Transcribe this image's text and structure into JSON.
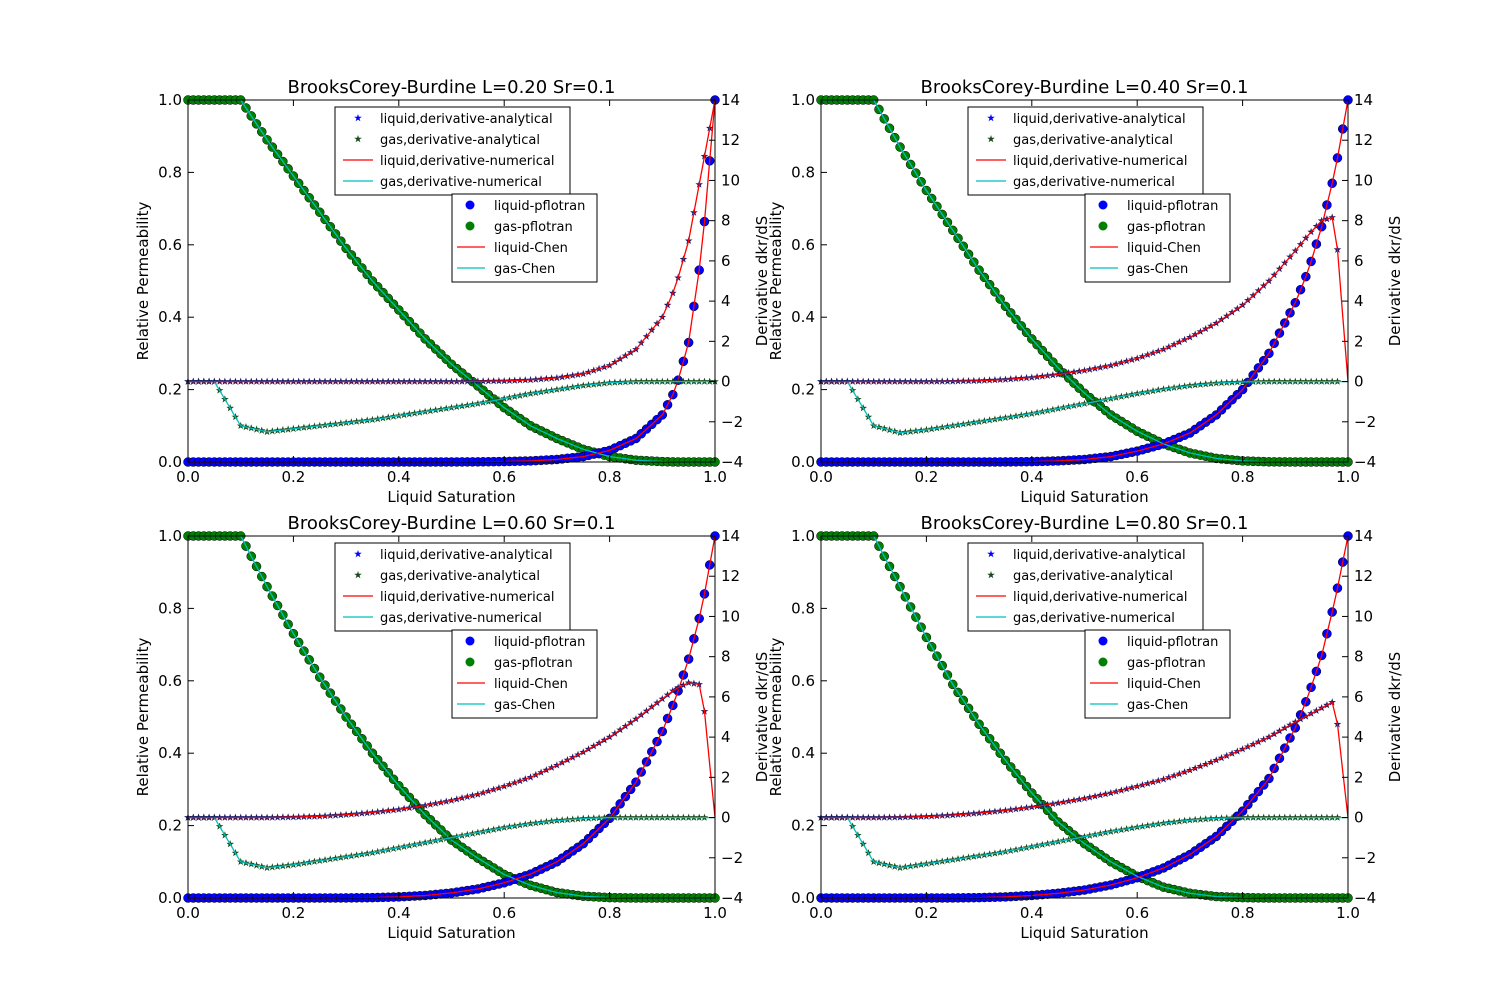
{
  "chart_data": [
    {
      "type": "line",
      "title": "BrooksCorey-Burdine L=0.20 Sr=0.1",
      "xlabel": "Liquid Saturation",
      "ylabel": "Relative Permeability",
      "y2label": "Derivative dkr/dS",
      "xlim": [
        0,
        1
      ],
      "ylim": [
        0,
        1
      ],
      "y2lim": [
        -4,
        14
      ],
      "x": [
        0,
        0.05,
        0.1,
        0.15,
        0.2,
        0.25,
        0.3,
        0.35,
        0.4,
        0.45,
        0.5,
        0.55,
        0.6,
        0.65,
        0.7,
        0.75,
        0.8,
        0.85,
        0.9,
        0.925,
        0.95,
        0.975,
        1.0
      ],
      "kr_liquid": [
        0,
        0,
        0,
        0,
        0,
        0,
        0,
        0,
        0,
        0,
        0.0001,
        0.0004,
        0.0012,
        0.003,
        0.007,
        0.015,
        0.032,
        0.065,
        0.13,
        0.2,
        0.33,
        0.58,
        1.0
      ],
      "kr_gas": [
        1,
        1,
        1,
        0.89,
        0.79,
        0.69,
        0.59,
        0.5,
        0.42,
        0.34,
        0.27,
        0.21,
        0.15,
        0.1,
        0.065,
        0.035,
        0.015,
        0.005,
        0.001,
        0,
        0,
        0,
        0
      ],
      "dkr_liquid": [
        0,
        0,
        0,
        0,
        0,
        0,
        0,
        0,
        0,
        0,
        0,
        0.01,
        0.03,
        0.08,
        0.18,
        0.38,
        0.8,
        1.6,
        3.2,
        4.7,
        7.0,
        10.5,
        14
      ],
      "dkr_gas": [
        0,
        0,
        -2.2,
        -2.5,
        -2.35,
        -2.2,
        -2.05,
        -1.9,
        -1.7,
        -1.5,
        -1.3,
        -1.1,
        -0.85,
        -0.6,
        -0.4,
        -0.2,
        -0.06,
        0,
        0,
        0,
        0,
        0,
        0
      ]
    },
    {
      "type": "line",
      "title": "BrooksCorey-Burdine L=0.40 Sr=0.1",
      "xlabel": "Liquid Saturation",
      "ylabel": "Relative Permeability",
      "y2label": "Derivative dkr/dS",
      "xlim": [
        0,
        1
      ],
      "ylim": [
        0,
        1
      ],
      "y2lim": [
        -4,
        14
      ],
      "x": [
        0,
        0.05,
        0.1,
        0.15,
        0.2,
        0.25,
        0.3,
        0.35,
        0.4,
        0.45,
        0.5,
        0.55,
        0.6,
        0.65,
        0.7,
        0.75,
        0.8,
        0.85,
        0.9,
        0.925,
        0.95,
        0.975,
        1.0
      ],
      "kr_liquid": [
        0,
        0,
        0,
        0,
        0,
        0,
        0,
        0.0002,
        0.001,
        0.003,
        0.007,
        0.015,
        0.03,
        0.05,
        0.08,
        0.13,
        0.2,
        0.3,
        0.44,
        0.53,
        0.65,
        0.8,
        1.0
      ],
      "kr_gas": [
        1,
        1,
        1,
        0.87,
        0.75,
        0.64,
        0.53,
        0.43,
        0.34,
        0.26,
        0.19,
        0.13,
        0.085,
        0.05,
        0.025,
        0.01,
        0.003,
        0.0005,
        0,
        0,
        0,
        0,
        0
      ],
      "dkr_liquid": [
        0,
        0,
        0,
        0,
        0,
        0.01,
        0.04,
        0.1,
        0.2,
        0.35,
        0.55,
        0.8,
        1.15,
        1.6,
        2.2,
        2.9,
        3.8,
        5.0,
        6.5,
        7.3,
        8.0,
        8.2,
        0
      ],
      "dkr_gas": [
        0,
        0,
        -2.2,
        -2.55,
        -2.4,
        -2.2,
        -2.0,
        -1.8,
        -1.6,
        -1.35,
        -1.1,
        -0.85,
        -0.6,
        -0.38,
        -0.2,
        -0.08,
        -0.02,
        0,
        0,
        0,
        0,
        0,
        0
      ]
    },
    {
      "type": "line",
      "title": "BrooksCorey-Burdine L=0.60 Sr=0.1",
      "xlabel": "Liquid Saturation",
      "ylabel": "Relative Permeability",
      "y2label": "Derivative dkr/dS",
      "xlim": [
        0,
        1
      ],
      "ylim": [
        0,
        1
      ],
      "y2lim": [
        -4,
        14
      ],
      "x": [
        0,
        0.05,
        0.1,
        0.15,
        0.2,
        0.25,
        0.3,
        0.35,
        0.4,
        0.45,
        0.5,
        0.55,
        0.6,
        0.65,
        0.7,
        0.75,
        0.8,
        0.85,
        0.9,
        0.925,
        0.95,
        0.975,
        1.0
      ],
      "kr_liquid": [
        0,
        0,
        0,
        0,
        0,
        0,
        0.0002,
        0.001,
        0.003,
        0.007,
        0.014,
        0.025,
        0.042,
        0.066,
        0.1,
        0.15,
        0.22,
        0.32,
        0.46,
        0.55,
        0.66,
        0.8,
        1.0
      ],
      "kr_gas": [
        1,
        1,
        1,
        0.86,
        0.73,
        0.61,
        0.5,
        0.4,
        0.31,
        0.23,
        0.16,
        0.11,
        0.065,
        0.035,
        0.015,
        0.005,
        0.001,
        0,
        0,
        0,
        0,
        0,
        0
      ],
      "dkr_liquid": [
        0,
        0,
        0,
        0,
        0.02,
        0.06,
        0.14,
        0.25,
        0.4,
        0.6,
        0.85,
        1.15,
        1.55,
        2.0,
        2.6,
        3.25,
        4.0,
        4.9,
        5.9,
        6.4,
        6.7,
        6.6,
        0
      ],
      "dkr_gas": [
        0,
        0,
        -2.2,
        -2.5,
        -2.35,
        -2.15,
        -1.95,
        -1.75,
        -1.5,
        -1.25,
        -1.0,
        -0.75,
        -0.5,
        -0.3,
        -0.15,
        -0.05,
        0,
        0,
        0,
        0,
        0,
        0,
        0
      ]
    },
    {
      "type": "line",
      "title": "BrooksCorey-Burdine L=0.80 Sr=0.1",
      "xlabel": "Liquid Saturation",
      "ylabel": "Relative Permeability",
      "y2label": "Derivative dkr/dS",
      "xlim": [
        0,
        1
      ],
      "ylim": [
        0,
        1
      ],
      "y2lim": [
        -4,
        14
      ],
      "x": [
        0,
        0.05,
        0.1,
        0.15,
        0.2,
        0.25,
        0.3,
        0.35,
        0.4,
        0.45,
        0.5,
        0.55,
        0.6,
        0.65,
        0.7,
        0.75,
        0.8,
        0.85,
        0.9,
        0.925,
        0.95,
        0.975,
        1.0
      ],
      "kr_liquid": [
        0,
        0,
        0,
        0,
        0,
        0.0002,
        0.001,
        0.003,
        0.007,
        0.013,
        0.022,
        0.036,
        0.056,
        0.083,
        0.12,
        0.17,
        0.24,
        0.33,
        0.47,
        0.56,
        0.67,
        0.82,
        1.0
      ],
      "kr_gas": [
        1,
        1,
        1,
        0.86,
        0.72,
        0.59,
        0.48,
        0.38,
        0.29,
        0.21,
        0.15,
        0.1,
        0.06,
        0.03,
        0.013,
        0.004,
        0.001,
        0,
        0,
        0,
        0,
        0,
        0
      ],
      "dkr_liquid": [
        0,
        0,
        0,
        0.01,
        0.05,
        0.12,
        0.22,
        0.35,
        0.52,
        0.72,
        0.95,
        1.22,
        1.55,
        1.9,
        2.35,
        2.85,
        3.4,
        4.0,
        4.75,
        5.1,
        5.45,
        5.8,
        0
      ],
      "dkr_gas": [
        0,
        0,
        -2.2,
        -2.5,
        -2.3,
        -2.1,
        -1.9,
        -1.7,
        -1.45,
        -1.2,
        -0.95,
        -0.7,
        -0.48,
        -0.28,
        -0.13,
        -0.04,
        0,
        0,
        0,
        0,
        0,
        0,
        0
      ]
    }
  ],
  "xticks": [
    "0.0",
    "0.2",
    "0.4",
    "0.6",
    "0.8",
    "1.0"
  ],
  "yticks": [
    "0.0",
    "0.2",
    "0.4",
    "0.6",
    "0.8",
    "1.0"
  ],
  "y2ticks": [
    "−4",
    "−2",
    "0",
    "2",
    "4",
    "6",
    "8",
    "10",
    "12",
    "14"
  ],
  "legend1": [
    "liquid,derivative-analytical",
    "gas,derivative-analytical",
    "liquid,derivative-numerical",
    "gas,derivative-numerical"
  ],
  "legend2": [
    "liquid-pflotran",
    "gas-pflotran",
    "liquid-Chen",
    "gas-Chen"
  ],
  "colors": {
    "liquid_marker": "#0000ff",
    "gas_marker": "#007f00",
    "liquid_line": "#ff0000",
    "gas_line": "#00bfbf",
    "star_liquid": "#1a1a6e",
    "star_gas": "#1a4a1a"
  }
}
